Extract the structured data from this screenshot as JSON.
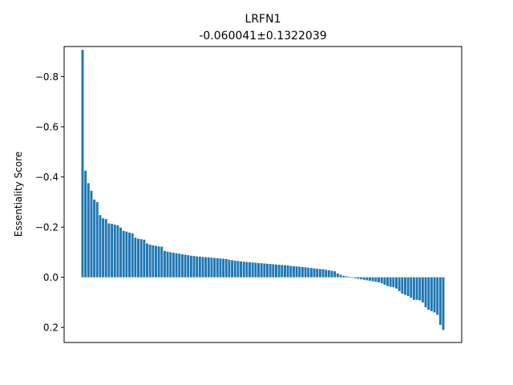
{
  "chart_data": {
    "type": "bar",
    "title": "LRFN1",
    "subtitle": "-0.060041±0.1322039",
    "xlabel": "",
    "ylabel": "Essentiality Score",
    "y_inverted": true,
    "ylim": [
      0.26,
      -0.92
    ],
    "yticks": [
      -0.8,
      -0.6,
      -0.4,
      -0.2,
      0.0,
      0.2
    ],
    "ytick_labels": [
      "−0.8",
      "−0.6",
      "−0.4",
      "−0.2",
      "0.0",
      "0.2"
    ],
    "x_ticks_shown": false,
    "grid": false,
    "bar_color": "#1f77b4",
    "values": [
      -0.907,
      -0.425,
      -0.375,
      -0.345,
      -0.31,
      -0.3,
      -0.248,
      -0.235,
      -0.232,
      -0.215,
      -0.213,
      -0.21,
      -0.207,
      -0.198,
      -0.185,
      -0.182,
      -0.178,
      -0.175,
      -0.158,
      -0.154,
      -0.152,
      -0.15,
      -0.135,
      -0.13,
      -0.127,
      -0.125,
      -0.123,
      -0.122,
      -0.105,
      -0.102,
      -0.1,
      -0.098,
      -0.096,
      -0.094,
      -0.092,
      -0.09,
      -0.088,
      -0.086,
      -0.085,
      -0.083,
      -0.082,
      -0.081,
      -0.08,
      -0.079,
      -0.078,
      -0.077,
      -0.076,
      -0.075,
      -0.074,
      -0.073,
      -0.07,
      -0.068,
      -0.066,
      -0.065,
      -0.063,
      -0.062,
      -0.061,
      -0.06,
      -0.059,
      -0.058,
      -0.057,
      -0.056,
      -0.055,
      -0.054,
      -0.053,
      -0.052,
      -0.051,
      -0.05,
      -0.049,
      -0.048,
      -0.047,
      -0.045,
      -0.044,
      -0.043,
      -0.042,
      -0.041,
      -0.04,
      -0.038,
      -0.037,
      -0.035,
      -0.034,
      -0.033,
      -0.032,
      -0.03,
      -0.028,
      -0.026,
      -0.024,
      -0.015,
      -0.01,
      -0.006,
      -0.004,
      -0.002,
      0.002,
      0.004,
      0.006,
      0.008,
      0.01,
      0.012,
      0.014,
      0.016,
      0.018,
      0.02,
      0.024,
      0.03,
      0.035,
      0.038,
      0.04,
      0.045,
      0.055,
      0.065,
      0.07,
      0.075,
      0.082,
      0.09,
      0.09,
      0.092,
      0.1,
      0.12,
      0.13,
      0.135,
      0.14,
      0.15,
      0.19,
      0.21
    ]
  }
}
